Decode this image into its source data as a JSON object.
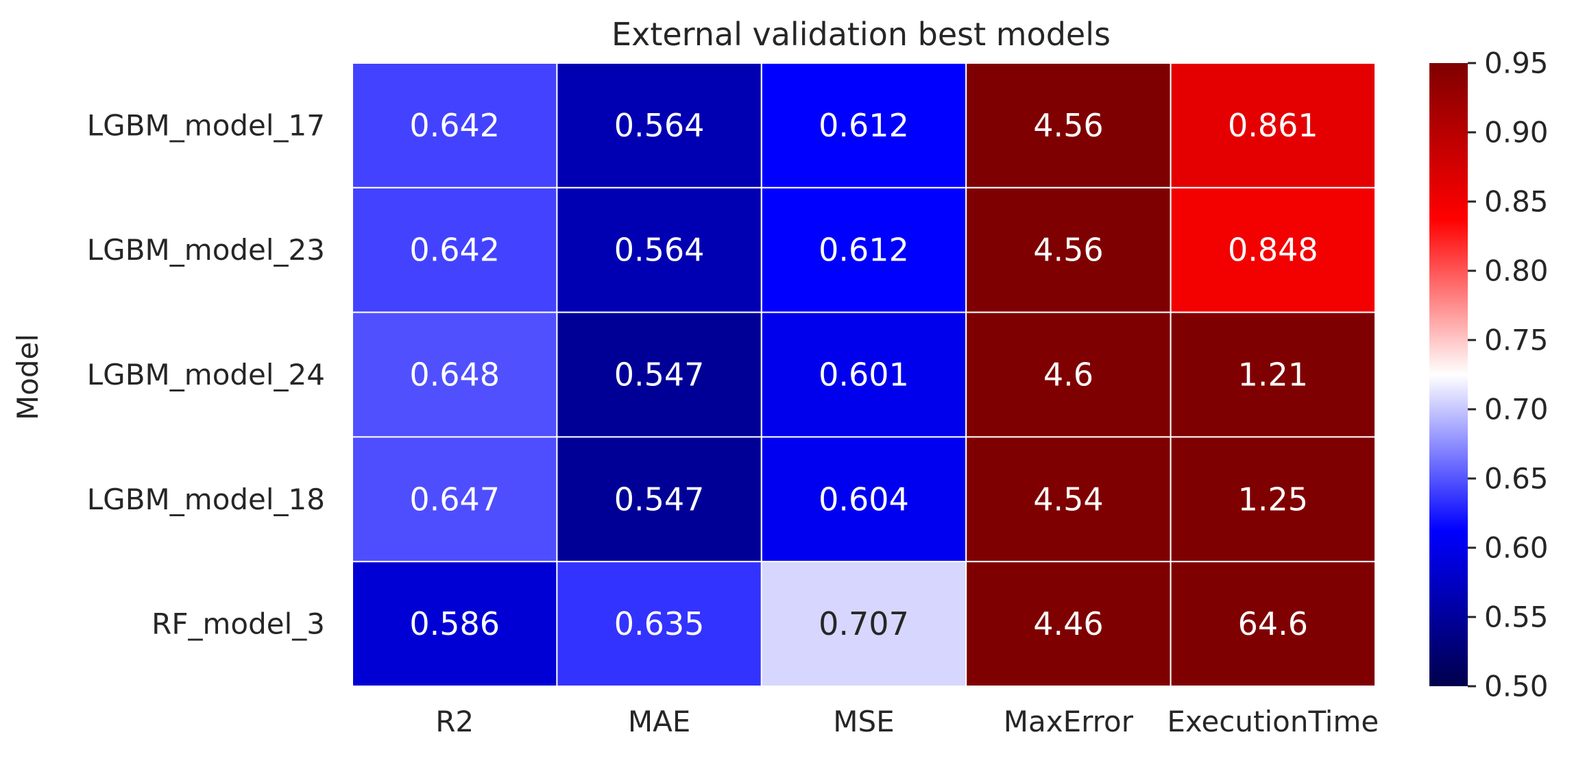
{
  "chart_data": {
    "type": "heatmap",
    "title": "External validation best models",
    "ylabel": "Model",
    "xlabel": "",
    "columns": [
      "R2",
      "MAE",
      "MSE",
      "MaxError",
      "ExecutionTime"
    ],
    "rows": [
      "LGBM_model_17",
      "LGBM_model_23",
      "LGBM_model_24",
      "LGBM_model_18",
      "RF_model_3"
    ],
    "cell_labels": [
      [
        "0.642",
        "0.564",
        "0.612",
        "4.56",
        "0.861"
      ],
      [
        "0.642",
        "0.564",
        "0.612",
        "4.56",
        "0.848"
      ],
      [
        "0.648",
        "0.547",
        "0.601",
        "4.6",
        "1.21"
      ],
      [
        "0.647",
        "0.547",
        "0.604",
        "4.54",
        "1.25"
      ],
      [
        "0.586",
        "0.635",
        "0.707",
        "4.46",
        "64.6"
      ]
    ],
    "values": [
      [
        0.642,
        0.564,
        0.612,
        4.56,
        0.861
      ],
      [
        0.642,
        0.564,
        0.612,
        4.56,
        0.848
      ],
      [
        0.648,
        0.547,
        0.601,
        4.6,
        1.21
      ],
      [
        0.647,
        0.547,
        0.604,
        4.54,
        1.25
      ],
      [
        0.586,
        0.635,
        0.707,
        4.46,
        64.6
      ]
    ],
    "colormap": "seismic",
    "vmin": 0.5,
    "vmax": 0.95,
    "colorbar_ticks": [
      "0.50",
      "0.55",
      "0.60",
      "0.65",
      "0.70",
      "0.75",
      "0.80",
      "0.85",
      "0.90",
      "0.95"
    ],
    "colorbar_position": "right",
    "grid_color": "#ffffff"
  }
}
